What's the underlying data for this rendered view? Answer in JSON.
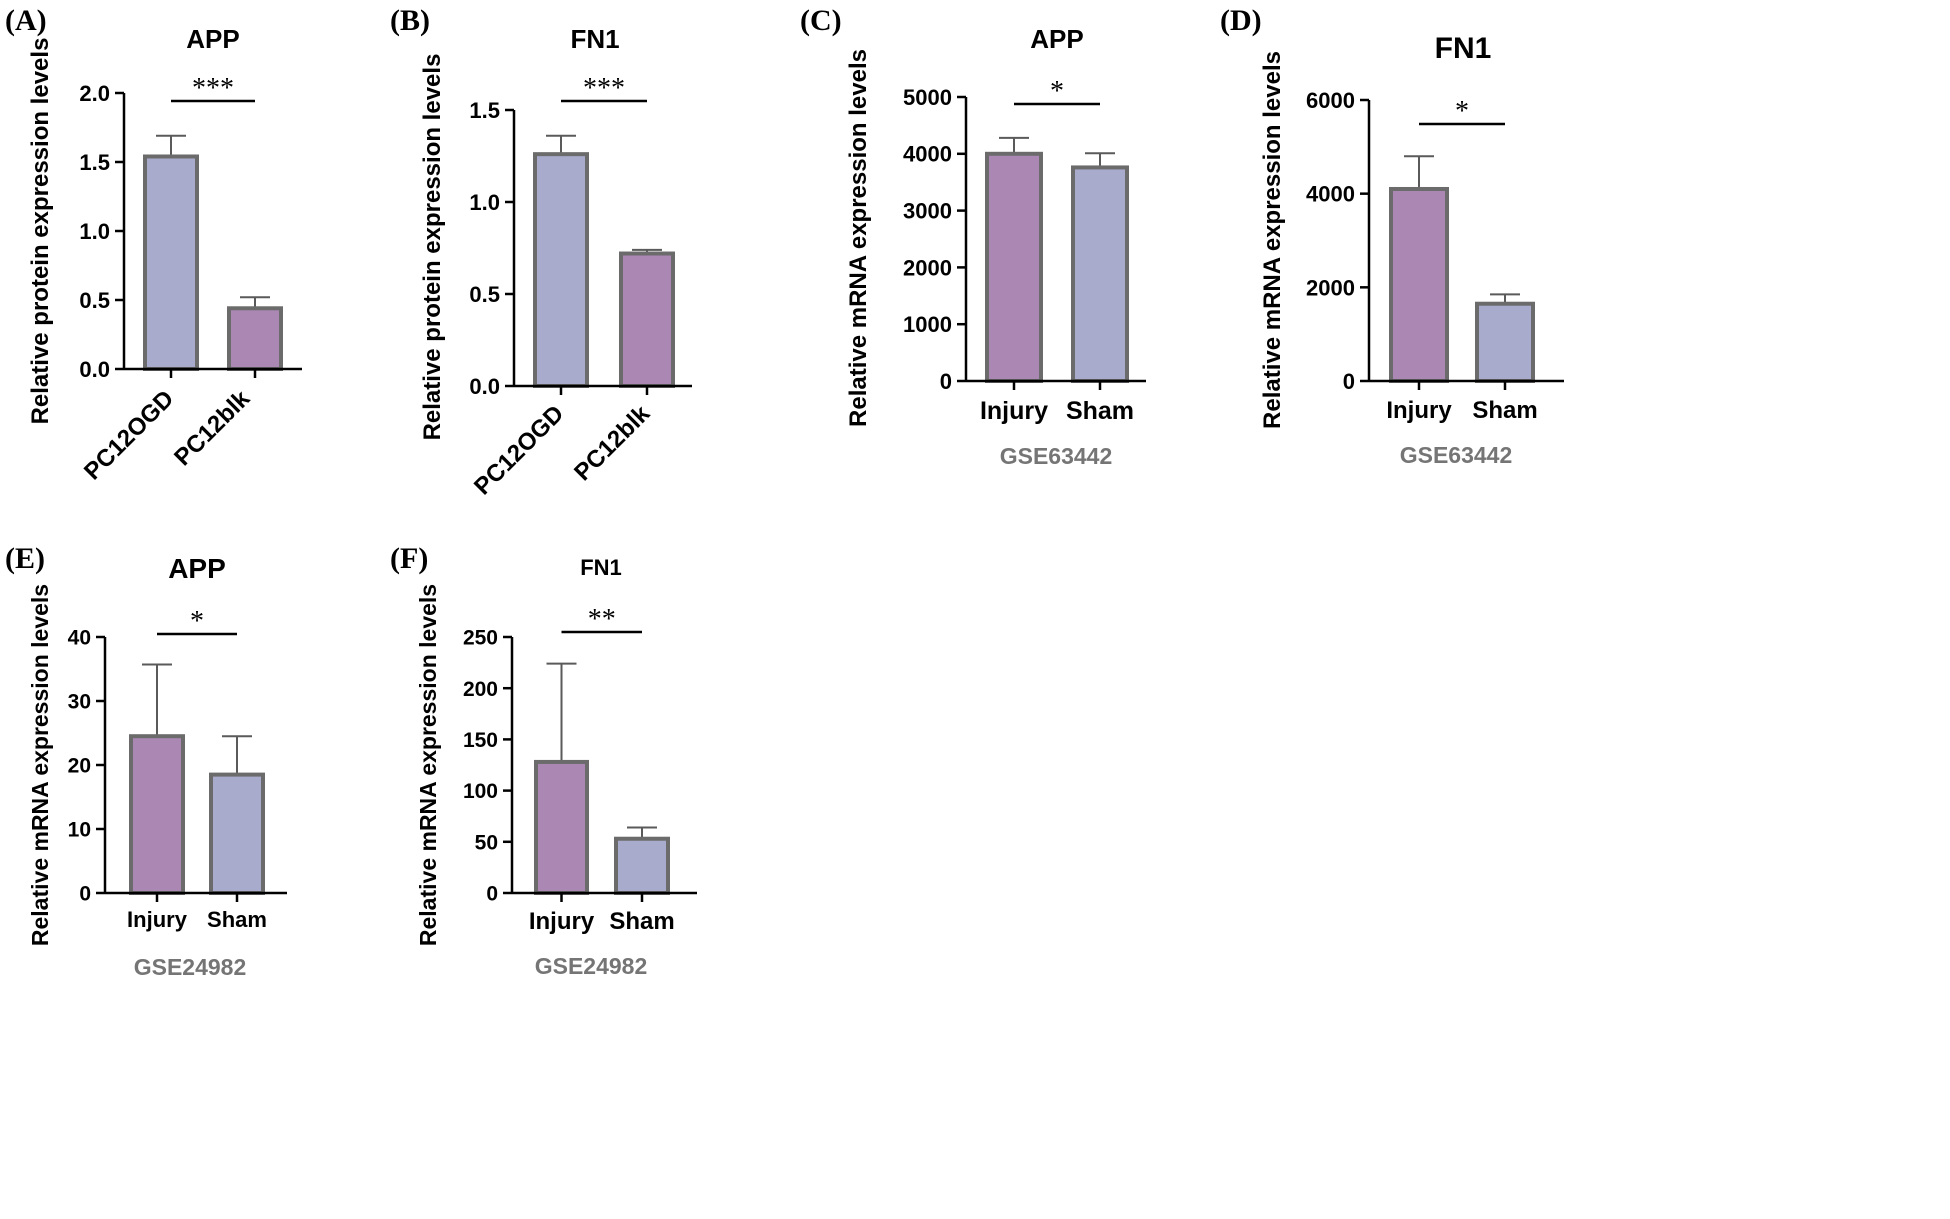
{
  "figure": {
    "colors": {
      "lavender": "#a9abcc",
      "mauve": "#ab88b4",
      "bar_edge": "#6b6b6b",
      "axis": "#000000",
      "dataset": "#757575"
    }
  },
  "chart_data": [
    {
      "panel": "(A)",
      "type": "bar",
      "title": "APP",
      "ylabel": "Relative protein expression levels",
      "xlabel": "",
      "categories": [
        "PC12OGD",
        "PC12blk"
      ],
      "values": [
        1.54,
        0.44
      ],
      "errors": [
        0.15,
        0.08
      ],
      "bar_colors": [
        "#a9abcc",
        "#ab88b4"
      ],
      "ylim": [
        0,
        2.0
      ],
      "yticks": [
        0.0,
        0.5,
        1.0,
        1.5,
        2.0
      ],
      "ytick_labels": [
        "0.0",
        "0.5",
        "1.0",
        "1.5",
        "2.0"
      ],
      "significance": "***",
      "dataset": "",
      "rotate_categories": true
    },
    {
      "panel": "(B)",
      "type": "bar",
      "title": "FN1",
      "ylabel": "Relative protein expression levels",
      "xlabel": "",
      "categories": [
        "PC12OGD",
        "PC12blk"
      ],
      "values": [
        1.26,
        0.72
      ],
      "errors": [
        0.1,
        0.02
      ],
      "bar_colors": [
        "#a9abcc",
        "#ab88b4"
      ],
      "ylim": [
        0,
        1.5
      ],
      "yticks": [
        0.0,
        0.5,
        1.0,
        1.5
      ],
      "ytick_labels": [
        "0.0",
        "0.5",
        "1.0",
        "1.5"
      ],
      "significance": "***",
      "dataset": "",
      "rotate_categories": true
    },
    {
      "panel": "(C)",
      "type": "bar",
      "title": "APP",
      "ylabel": "Relative mRNA expression levels",
      "xlabel": "",
      "categories": [
        "Injury",
        "Sham"
      ],
      "values": [
        4000,
        3760
      ],
      "errors": [
        280,
        250
      ],
      "bar_colors": [
        "#ab88b4",
        "#a9abcc"
      ],
      "ylim": [
        0,
        5000
      ],
      "yticks": [
        0,
        1000,
        2000,
        3000,
        4000,
        5000
      ],
      "ytick_labels": [
        "0",
        "1000",
        "2000",
        "3000",
        "4000",
        "5000"
      ],
      "significance": "*",
      "dataset": "GSE63442",
      "rotate_categories": false
    },
    {
      "panel": "(D)",
      "type": "bar",
      "title": "FN1",
      "ylabel": "Relative mRNA expression levels",
      "xlabel": "",
      "categories": [
        "Injury",
        "Sham"
      ],
      "values": [
        4100,
        1650
      ],
      "errors": [
        700,
        200
      ],
      "bar_colors": [
        "#ab88b4",
        "#a9abcc"
      ],
      "ylim": [
        0,
        6000
      ],
      "yticks": [
        0,
        2000,
        4000,
        6000
      ],
      "ytick_labels": [
        "0",
        "2000",
        "4000",
        "6000"
      ],
      "significance": "*",
      "dataset": "GSE63442",
      "rotate_categories": false
    },
    {
      "panel": "(E)",
      "type": "bar",
      "title": "APP",
      "ylabel": "Relative mRNA expression levels",
      "xlabel": "",
      "categories": [
        "Injury",
        "Sham"
      ],
      "values": [
        24.5,
        18.5
      ],
      "errors": [
        11.2,
        6.0
      ],
      "bar_colors": [
        "#ab88b4",
        "#a9abcc"
      ],
      "ylim": [
        0,
        40
      ],
      "yticks": [
        0,
        10,
        20,
        30,
        40
      ],
      "ytick_labels": [
        "0",
        "10",
        "20",
        "30",
        "40"
      ],
      "significance": "*",
      "dataset": "GSE24982",
      "rotate_categories": false
    },
    {
      "panel": "(F)",
      "type": "bar",
      "title": "FN1",
      "ylabel": "Relative mRNA expression levels",
      "xlabel": "",
      "categories": [
        "Injury",
        "Sham"
      ],
      "values": [
        128,
        53
      ],
      "errors": [
        96,
        11
      ],
      "bar_colors": [
        "#ab88b4",
        "#a9abcc"
      ],
      "ylim": [
        0,
        250
      ],
      "yticks": [
        0,
        50,
        100,
        150,
        200,
        250
      ],
      "ytick_labels": [
        "0",
        "50",
        "100",
        "150",
        "200",
        "250"
      ],
      "significance": "**",
      "dataset": "GSE24982",
      "rotate_categories": false
    }
  ]
}
